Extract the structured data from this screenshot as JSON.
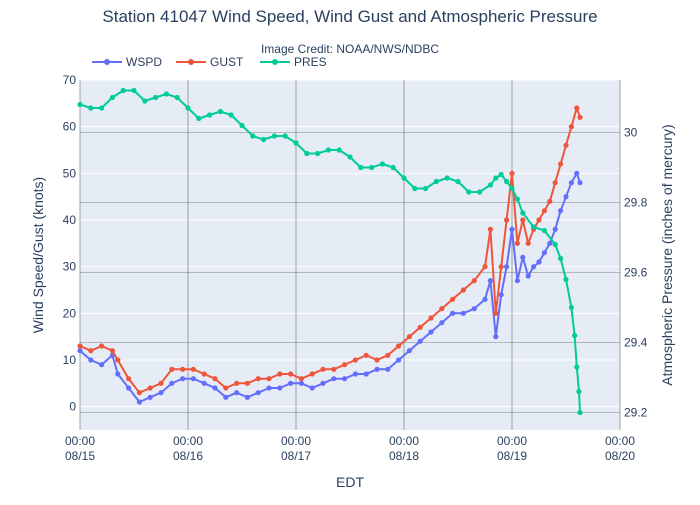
{
  "chart_data": {
    "type": "line",
    "title": "Station 41047 Wind Speed, Wind Gust and Atmospheric Pressure",
    "subtitle": "Image Credit: NOAA/NWS/NDBC",
    "xlabel": "EDT",
    "ylabel": "Wind Speed/Gust (knots)",
    "y2label": "Atmospheric Pressure (inches of mercury)",
    "x_ticks": [
      {
        "time": "00:00",
        "date": "08/15",
        "day": 0
      },
      {
        "time": "00:00",
        "date": "08/16",
        "day": 1
      },
      {
        "time": "00:00",
        "date": "08/17",
        "day": 2
      },
      {
        "time": "00:00",
        "date": "08/18",
        "day": 3
      },
      {
        "time": "00:00",
        "date": "08/19",
        "day": 4
      },
      {
        "time": "00:00",
        "date": "08/20",
        "day": 5
      }
    ],
    "xlim": [
      0,
      5
    ],
    "ylim": [
      -5,
      70
    ],
    "y_ticks": [
      0,
      10,
      20,
      30,
      40,
      50,
      60,
      70
    ],
    "y2lim": [
      29.15,
      30.15
    ],
    "y2_ticks": [
      29.2,
      29.4,
      29.6,
      29.8,
      30
    ],
    "x_unit_note": "x values are days since 08/15 00:00 EDT",
    "legend": {
      "placement": "top-left",
      "orientation": "horizontal"
    },
    "grid": true,
    "series": [
      {
        "name": "WSPD",
        "axis": "left",
        "color": "#636efa",
        "points": [
          [
            0,
            12
          ],
          [
            0.1,
            10
          ],
          [
            0.2,
            9
          ],
          [
            0.3,
            11
          ],
          [
            0.35,
            7
          ],
          [
            0.45,
            4
          ],
          [
            0.55,
            1
          ],
          [
            0.65,
            2
          ],
          [
            0.75,
            3
          ],
          [
            0.85,
            5
          ],
          [
            0.95,
            6
          ],
          [
            1.05,
            6
          ],
          [
            1.15,
            5
          ],
          [
            1.25,
            4
          ],
          [
            1.35,
            2
          ],
          [
            1.45,
            3
          ],
          [
            1.55,
            2
          ],
          [
            1.65,
            3
          ],
          [
            1.75,
            4
          ],
          [
            1.85,
            4
          ],
          [
            1.95,
            5
          ],
          [
            2.05,
            5
          ],
          [
            2.15,
            4
          ],
          [
            2.25,
            5
          ],
          [
            2.35,
            6
          ],
          [
            2.45,
            6
          ],
          [
            2.55,
            7
          ],
          [
            2.65,
            7
          ],
          [
            2.75,
            8
          ],
          [
            2.85,
            8
          ],
          [
            2.95,
            10
          ],
          [
            3.05,
            12
          ],
          [
            3.15,
            14
          ],
          [
            3.25,
            16
          ],
          [
            3.35,
            18
          ],
          [
            3.45,
            20
          ],
          [
            3.55,
            20
          ],
          [
            3.65,
            21
          ],
          [
            3.75,
            23
          ],
          [
            3.8,
            27
          ],
          [
            3.85,
            15
          ],
          [
            3.9,
            24
          ],
          [
            3.95,
            30
          ],
          [
            4.0,
            38
          ],
          [
            4.05,
            27
          ],
          [
            4.1,
            32
          ],
          [
            4.15,
            28
          ],
          [
            4.2,
            30
          ],
          [
            4.25,
            31
          ],
          [
            4.3,
            33
          ],
          [
            4.35,
            35
          ],
          [
            4.4,
            38
          ],
          [
            4.45,
            42
          ],
          [
            4.5,
            45
          ],
          [
            4.55,
            48
          ],
          [
            4.6,
            50
          ],
          [
            4.63,
            48
          ]
        ]
      },
      {
        "name": "GUST",
        "axis": "left",
        "color": "#ef553b",
        "points": [
          [
            0,
            13
          ],
          [
            0.1,
            12
          ],
          [
            0.2,
            13
          ],
          [
            0.3,
            12
          ],
          [
            0.35,
            10
          ],
          [
            0.45,
            6
          ],
          [
            0.55,
            3
          ],
          [
            0.65,
            4
          ],
          [
            0.75,
            5
          ],
          [
            0.85,
            8
          ],
          [
            0.95,
            8
          ],
          [
            1.05,
            8
          ],
          [
            1.15,
            7
          ],
          [
            1.25,
            6
          ],
          [
            1.35,
            4
          ],
          [
            1.45,
            5
          ],
          [
            1.55,
            5
          ],
          [
            1.65,
            6
          ],
          [
            1.75,
            6
          ],
          [
            1.85,
            7
          ],
          [
            1.95,
            7
          ],
          [
            2.05,
            6
          ],
          [
            2.15,
            7
          ],
          [
            2.25,
            8
          ],
          [
            2.35,
            8
          ],
          [
            2.45,
            9
          ],
          [
            2.55,
            10
          ],
          [
            2.65,
            11
          ],
          [
            2.75,
            10
          ],
          [
            2.85,
            11
          ],
          [
            2.95,
            13
          ],
          [
            3.05,
            15
          ],
          [
            3.15,
            17
          ],
          [
            3.25,
            19
          ],
          [
            3.35,
            21
          ],
          [
            3.45,
            23
          ],
          [
            3.55,
            25
          ],
          [
            3.65,
            27
          ],
          [
            3.75,
            30
          ],
          [
            3.8,
            38
          ],
          [
            3.85,
            20
          ],
          [
            3.9,
            30
          ],
          [
            3.95,
            40
          ],
          [
            4.0,
            50
          ],
          [
            4.05,
            35
          ],
          [
            4.1,
            40
          ],
          [
            4.15,
            35
          ],
          [
            4.2,
            38
          ],
          [
            4.25,
            40
          ],
          [
            4.3,
            42
          ],
          [
            4.35,
            44
          ],
          [
            4.4,
            48
          ],
          [
            4.45,
            52
          ],
          [
            4.5,
            56
          ],
          [
            4.55,
            60
          ],
          [
            4.6,
            64
          ],
          [
            4.63,
            62
          ]
        ]
      },
      {
        "name": "PRES",
        "axis": "right",
        "color": "#00cc96",
        "points": [
          [
            0,
            30.08
          ],
          [
            0.1,
            30.07
          ],
          [
            0.2,
            30.07
          ],
          [
            0.3,
            30.1
          ],
          [
            0.4,
            30.12
          ],
          [
            0.5,
            30.12
          ],
          [
            0.6,
            30.09
          ],
          [
            0.7,
            30.1
          ],
          [
            0.8,
            30.11
          ],
          [
            0.9,
            30.1
          ],
          [
            1.0,
            30.07
          ],
          [
            1.1,
            30.04
          ],
          [
            1.2,
            30.05
          ],
          [
            1.3,
            30.06
          ],
          [
            1.4,
            30.05
          ],
          [
            1.5,
            30.02
          ],
          [
            1.6,
            29.99
          ],
          [
            1.7,
            29.98
          ],
          [
            1.8,
            29.99
          ],
          [
            1.9,
            29.99
          ],
          [
            2.0,
            29.97
          ],
          [
            2.1,
            29.94
          ],
          [
            2.2,
            29.94
          ],
          [
            2.3,
            29.95
          ],
          [
            2.4,
            29.95
          ],
          [
            2.5,
            29.93
          ],
          [
            2.6,
            29.9
          ],
          [
            2.7,
            29.9
          ],
          [
            2.8,
            29.91
          ],
          [
            2.9,
            29.9
          ],
          [
            3.0,
            29.87
          ],
          [
            3.1,
            29.84
          ],
          [
            3.2,
            29.84
          ],
          [
            3.3,
            29.86
          ],
          [
            3.4,
            29.87
          ],
          [
            3.5,
            29.86
          ],
          [
            3.6,
            29.83
          ],
          [
            3.7,
            29.83
          ],
          [
            3.8,
            29.85
          ],
          [
            3.85,
            29.87
          ],
          [
            3.9,
            29.88
          ],
          [
            3.95,
            29.86
          ],
          [
            4.0,
            29.84
          ],
          [
            4.05,
            29.81
          ],
          [
            4.1,
            29.77
          ],
          [
            4.2,
            29.73
          ],
          [
            4.3,
            29.72
          ],
          [
            4.4,
            29.68
          ],
          [
            4.45,
            29.64
          ],
          [
            4.5,
            29.58
          ],
          [
            4.55,
            29.5
          ],
          [
            4.58,
            29.42
          ],
          [
            4.6,
            29.33
          ],
          [
            4.62,
            29.26
          ],
          [
            4.63,
            29.2
          ]
        ]
      }
    ]
  }
}
